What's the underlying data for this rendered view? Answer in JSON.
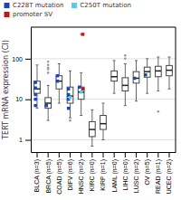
{
  "chart_data": {
    "type": "box",
    "categories": [
      "BLCA (n=3)",
      "BRCA (n=5)",
      "COAD (n=5)",
      "DIFV (n=6)",
      "HNSC (n=2)",
      "KIRC (n=0)",
      "KIRP (n=1)",
      "LAML (n=0)",
      "LIHC (n=0)",
      "LUSC (n=2)",
      "OV (n=5)",
      "READ (n=1)",
      "UCEC (n=2)"
    ],
    "boxes": [
      {
        "q1": 14,
        "median": 18,
        "q3": 28,
        "whisker_low": 6,
        "whisker_high": 70,
        "outliers": []
      },
      {
        "q1": 6,
        "median": 8,
        "q3": 11,
        "whisker_low": 3,
        "whisker_high": 22,
        "outliers": [
          85,
          70,
          60,
          55,
          45
        ]
      },
      {
        "q1": 18,
        "median": 28,
        "q3": 38,
        "whisker_low": 8,
        "whisker_high": 75,
        "outliers": []
      },
      {
        "q1": 8,
        "median": 12,
        "q3": 20,
        "whisker_low": 3.5,
        "whisker_high": 50,
        "outliers": [
          3.0
        ]
      },
      {
        "q1": 10,
        "median": 15,
        "q3": 20,
        "whisker_low": 4,
        "whisker_high": 45,
        "outliers": [
          400
        ]
      },
      {
        "q1": 1.2,
        "median": 1.8,
        "q3": 2.8,
        "whisker_low": 0.7,
        "whisker_high": 5.5,
        "outliers": []
      },
      {
        "q1": 1.8,
        "median": 2.5,
        "q3": 4.0,
        "whisker_low": 1.0,
        "whisker_high": 8.0,
        "outliers": []
      },
      {
        "q1": 28,
        "median": 36,
        "q3": 50,
        "whisker_low": 14,
        "whisker_high": 90,
        "outliers": []
      },
      {
        "q1": 16,
        "median": 22,
        "q3": 34,
        "whisker_low": 7,
        "whisker_high": 75,
        "outliers": [
          120,
          100
        ]
      },
      {
        "q1": 25,
        "median": 33,
        "q3": 48,
        "whisker_low": 9,
        "whisker_high": 90,
        "outliers": []
      },
      {
        "q1": 35,
        "median": 48,
        "q3": 62,
        "whisker_low": 14,
        "whisker_high": 100,
        "outliers": []
      },
      {
        "q1": 36,
        "median": 50,
        "q3": 65,
        "whisker_low": 16,
        "whisker_high": 110,
        "outliers": [
          5
        ]
      },
      {
        "q1": 38,
        "median": 52,
        "q3": 68,
        "whisker_low": 18,
        "whisker_high": 110,
        "outliers": []
      }
    ],
    "series": [
      {
        "name": "C228T mutation",
        "color": "#1a44bb",
        "type": "scatter",
        "marker": "square",
        "x": [
          "BLCA (n=3)",
          "BLCA (n=3)",
          "BLCA (n=3)",
          "BLCA (n=3)",
          "BLCA (n=3)",
          "BRCA (n=5)",
          "COAD (n=5)",
          "COAD (n=5)",
          "DIFV (n=6)",
          "DIFV (n=6)",
          "DIFV (n=6)",
          "DIFV (n=6)",
          "HNSC (n=2)",
          "LUSC (n=2)",
          "OV (n=5)"
        ],
        "values": [
          26,
          19,
          13,
          10,
          7,
          7,
          38,
          28,
          18,
          13,
          10,
          6,
          20,
          33,
          40
        ]
      },
      {
        "name": "C250T mutation",
        "color": "#55ccee",
        "type": "scatter",
        "marker": "square",
        "x": [
          "DIFV (n=6)",
          "HNSC (n=2)"
        ],
        "values": [
          11,
          15
        ]
      },
      {
        "name": "promoter SV",
        "color": "#cc1111",
        "type": "scatter",
        "marker": "square",
        "x": [
          "HNSC (n=2)",
          "HNSC (n=2)"
        ],
        "values": [
          400,
          18
        ]
      }
    ],
    "ylabel": "TERT mRNA expression (CI)",
    "log": "y",
    "ylim": [
      0.5,
      600
    ],
    "yticks": [
      1,
      10,
      100
    ],
    "grid": true,
    "legend": "top"
  }
}
